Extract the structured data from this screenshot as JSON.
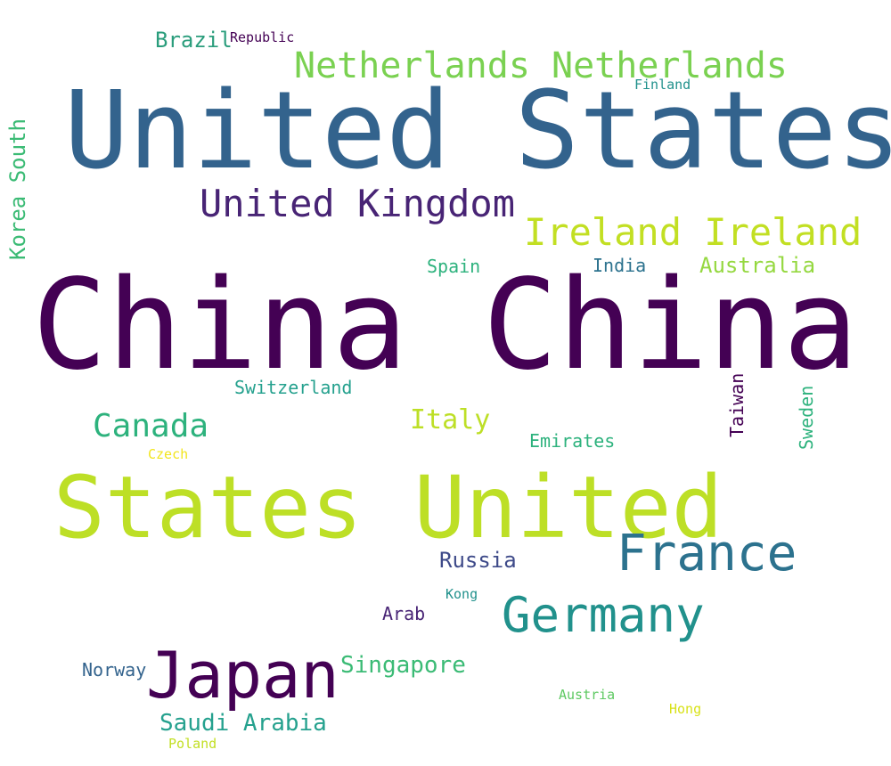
{
  "words": {
    "united_states": "United States",
    "china_china": "China China",
    "states_united": "States United",
    "netherlands_netherlands": "Netherlands Netherlands",
    "united_kingdom": "United Kingdom",
    "ireland_ireland": "Ireland Ireland",
    "france": "France",
    "germany": "Germany",
    "japan": "Japan",
    "canada": "Canada",
    "italy": "Italy",
    "brazil": "Brazil",
    "republic": "Republic",
    "finland": "Finland",
    "spain": "Spain",
    "india": "India",
    "australia": "Australia",
    "switzerland": "Switzerland",
    "emirates": "Emirates",
    "czech": "Czech",
    "russia": "Russia",
    "kong": "Kong",
    "arab": "Arab",
    "norway": "Norway",
    "singapore": "Singapore",
    "austria": "Austria",
    "hong": "Hong",
    "saudi_arabia": "Saudi Arabia",
    "poland": "Poland",
    "korea_south": "Korea South",
    "taiwan": "Taiwan",
    "sweden": "Sweden"
  }
}
